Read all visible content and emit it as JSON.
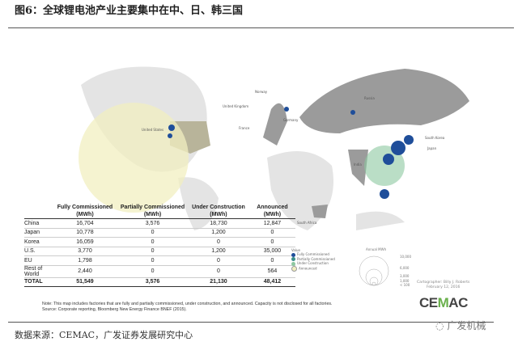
{
  "title": "图6：全球锂电池产业主要集中在中、日、韩三国",
  "map": {
    "country_labels": {
      "us": "United States",
      "norway": "Norway",
      "uk": "United Kingdom",
      "france": "France",
      "germany": "Germany",
      "russia": "Russia",
      "south_korea": "South Korea",
      "japan": "Japan",
      "india": "India",
      "south_africa": "South Africa"
    },
    "colors": {
      "fully": "#1f4e9a",
      "partially": "#3a8f8a",
      "under": "#8cc8a0",
      "announced": "#f1efc0",
      "land": "#e3e3e3",
      "highlight": "#9b9b9b"
    }
  },
  "table": {
    "headers": [
      "",
      "Fully Commissioned (MWh)",
      "Partially Commissioned (MWh)",
      "Under Construction (MWh)",
      "Announced (MWh)"
    ],
    "rows": [
      [
        "China",
        "16,704",
        "3,576",
        "18,730",
        "12,847"
      ],
      [
        "Japan",
        "10,778",
        "0",
        "1,200",
        "0"
      ],
      [
        "Korea",
        "16,059",
        "0",
        "0",
        "0"
      ],
      [
        "U.S.",
        "3,770",
        "0",
        "1,200",
        "35,000"
      ],
      [
        "EU",
        "1,798",
        "0",
        "0",
        "0"
      ],
      [
        "Rest of World",
        "2,440",
        "0",
        "0",
        "564"
      ]
    ],
    "total": [
      "TOTAL",
      "51,549",
      "3,576",
      "21,130",
      "48,412"
    ]
  },
  "note": "Note: This map includes factories that are fully and partially commissioned, under construction, and announced. Capacity is not disclosed for all factories.",
  "note_source": "Source: Corporate reporting, Bloomberg New Energy Finance BNEF (2015).",
  "legend": {
    "title": "Value",
    "items": [
      "Fully Commissioned",
      "Partially Commissioned",
      "Under Construction",
      "Announced"
    ],
    "size_title": "Annual MWh",
    "sizes": [
      "10,000",
      "6,000",
      "3,000",
      "1,000",
      "< 100"
    ]
  },
  "cartographer": "Cartographer: Billy J. Roberts",
  "date": "February 12, 2016",
  "logo": "CEMAC",
  "source": "数据来源：CEMAC，广发证券发展研究中心",
  "watermark": "广发机械"
}
